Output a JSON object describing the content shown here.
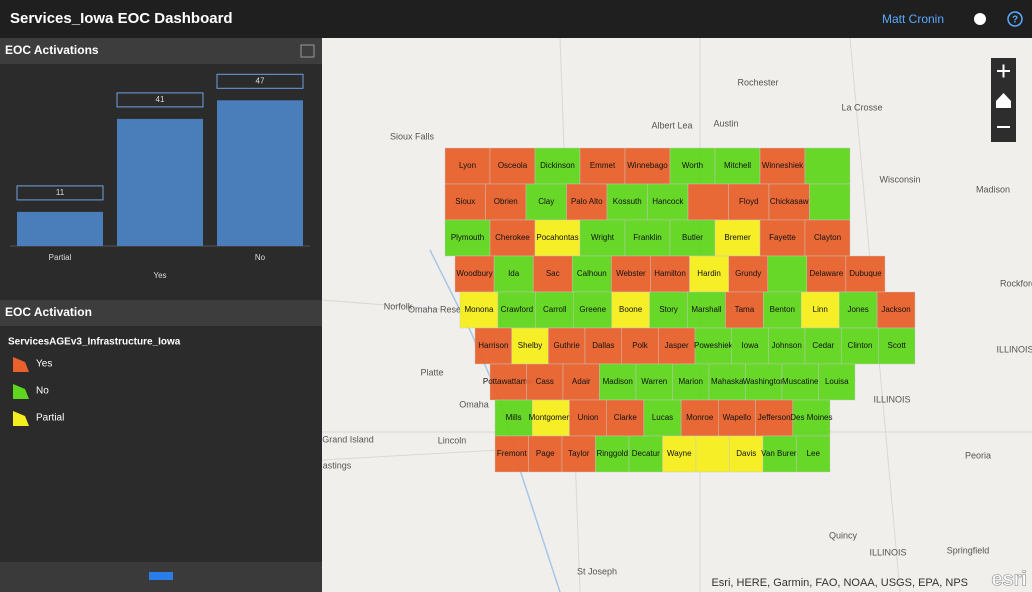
{
  "header": {
    "title": "Services_Iowa EOC Dashboard",
    "user": "Matt Cronin",
    "help": "?"
  },
  "chart_panel": {
    "title": "EOC Activations"
  },
  "chart_data": {
    "type": "bar",
    "categories": [
      "Partial",
      "Yes",
      "No"
    ],
    "values": [
      11,
      41,
      47
    ],
    "color": "#4a7ebb",
    "ylim": [
      0,
      50
    ]
  },
  "legend_panel": {
    "title": "EOC Activation",
    "layer": "ServicesAGEv3_Infrastructure_Iowa",
    "items": [
      {
        "label": "Yes",
        "color": "#e8612c"
      },
      {
        "label": "No",
        "color": "#5fd61e"
      },
      {
        "label": "Partial",
        "color": "#f5ee1e"
      }
    ]
  },
  "map": {
    "places": [
      "Rochester",
      "La Crosse",
      "Albert Lea",
      "Austin",
      "Sioux Falls",
      "Madison",
      "Wisconsin",
      "Norfolk",
      "Omaha Reservation",
      "Rockford",
      "ILLINOIS",
      "ILLINOIS",
      "Omaha",
      "Grand Island",
      "Lincoln",
      "astings",
      "Peoria",
      "Quincy",
      "ILLINOIS",
      "Springfield",
      "St Joseph",
      "Platte"
    ],
    "counties": [
      [
        {
          "name": "Lyon",
          "status": "Yes"
        },
        {
          "name": "Osceola",
          "status": "Yes"
        },
        {
          "name": "Dickinson",
          "status": "No"
        },
        {
          "name": "Emmet",
          "status": "Yes"
        },
        {
          "name": "Winnebago",
          "status": "Yes"
        },
        {
          "name": "Worth",
          "status": "No"
        },
        {
          "name": "Mitchell",
          "status": "No"
        },
        {
          "name": "Winneshiek",
          "status": "Yes"
        },
        {
          "name": null,
          "status": "No"
        }
      ],
      [
        {
          "name": "Sioux",
          "status": "Yes"
        },
        {
          "name": "Obrien",
          "status": "Yes"
        },
        {
          "name": "Clay",
          "status": "No"
        },
        {
          "name": "Palo Alto",
          "status": "Yes"
        },
        {
          "name": "Kossuth",
          "status": "No"
        },
        {
          "name": "Hancock",
          "status": "No"
        },
        {
          "name": null,
          "status": "Yes"
        },
        {
          "name": "Floyd",
          "status": "Yes"
        },
        {
          "name": "Chickasaw",
          "status": "Yes"
        },
        {
          "name": null,
          "status": "No"
        }
      ],
      [
        {
          "name": "Plymouth",
          "status": "No"
        },
        {
          "name": "Cherokee",
          "status": "Yes"
        },
        {
          "name": "Pocahontas",
          "status": "Partial"
        },
        {
          "name": "Wright",
          "status": "No"
        },
        {
          "name": "Franklin",
          "status": "No"
        },
        {
          "name": "Butler",
          "status": "No"
        },
        {
          "name": "Bremer",
          "status": "Partial"
        },
        {
          "name": "Fayette",
          "status": "Yes"
        },
        {
          "name": "Clayton",
          "status": "Yes"
        }
      ],
      [
        {
          "name": "Woodbury",
          "status": "Yes"
        },
        {
          "name": "Ida",
          "status": "No"
        },
        {
          "name": "Sac",
          "status": "Yes"
        },
        {
          "name": "Calhoun",
          "status": "No"
        },
        {
          "name": "Webster",
          "status": "Yes"
        },
        {
          "name": "Hamilton",
          "status": "Yes"
        },
        {
          "name": "Hardin",
          "status": "Partial"
        },
        {
          "name": "Grundy",
          "status": "Yes"
        },
        {
          "name": null,
          "status": "No"
        },
        {
          "name": "Delaware",
          "status": "Yes"
        },
        {
          "name": "Dubuque",
          "status": "Yes"
        }
      ],
      [
        {
          "name": "Monona",
          "status": "Partial"
        },
        {
          "name": "Crawford",
          "status": "No"
        },
        {
          "name": "Carroll",
          "status": "No"
        },
        {
          "name": "Greene",
          "status": "No"
        },
        {
          "name": "Boone",
          "status": "Partial"
        },
        {
          "name": "Story",
          "status": "No"
        },
        {
          "name": "Marshall",
          "status": "No"
        },
        {
          "name": "Tama",
          "status": "Yes"
        },
        {
          "name": "Benton",
          "status": "No"
        },
        {
          "name": "Linn",
          "status": "Partial"
        },
        {
          "name": "Jones",
          "status": "No"
        },
        {
          "name": "Jackson",
          "status": "Yes"
        }
      ],
      [
        {
          "name": "Harrison",
          "status": "Yes"
        },
        {
          "name": "Shelby",
          "status": "Partial"
        },
        {
          "name": "Guthrie",
          "status": "Yes"
        },
        {
          "name": "Dallas",
          "status": "Yes"
        },
        {
          "name": "Polk",
          "status": "Yes"
        },
        {
          "name": "Jasper",
          "status": "Yes"
        },
        {
          "name": "Poweshiek",
          "status": "No"
        },
        {
          "name": "Iowa",
          "status": "No"
        },
        {
          "name": "Johnson",
          "status": "No"
        },
        {
          "name": "Cedar",
          "status": "No"
        },
        {
          "name": "Clinton",
          "status": "No"
        },
        {
          "name": "Scott",
          "status": "No"
        }
      ],
      [
        {
          "name": "Pottawattamie",
          "status": "Yes"
        },
        {
          "name": "Cass",
          "status": "Yes"
        },
        {
          "name": "Adair",
          "status": "Yes"
        },
        {
          "name": "Madison",
          "status": "No"
        },
        {
          "name": "Warren",
          "status": "No"
        },
        {
          "name": "Marion",
          "status": "No"
        },
        {
          "name": "Mahaska",
          "status": "No"
        },
        {
          "name": "Washington",
          "status": "No"
        },
        {
          "name": "Muscatine",
          "status": "No"
        },
        {
          "name": "Louisa",
          "status": "No"
        }
      ],
      [
        {
          "name": "Mills",
          "status": "No"
        },
        {
          "name": "Montgomery",
          "status": "Partial"
        },
        {
          "name": "Union",
          "status": "Yes"
        },
        {
          "name": "Clarke",
          "status": "Yes"
        },
        {
          "name": "Lucas",
          "status": "No"
        },
        {
          "name": "Monroe",
          "status": "Yes"
        },
        {
          "name": "Wapello",
          "status": "Yes"
        },
        {
          "name": "Jefferson",
          "status": "Yes"
        },
        {
          "name": "Des Moines",
          "status": "No"
        }
      ],
      [
        {
          "name": "Fremont",
          "status": "Yes"
        },
        {
          "name": "Page",
          "status": "Yes"
        },
        {
          "name": "Taylor",
          "status": "Yes"
        },
        {
          "name": "Ringgold",
          "status": "No"
        },
        {
          "name": "Decatur",
          "status": "No"
        },
        {
          "name": "Wayne",
          "status": "Partial"
        },
        {
          "name": null,
          "status": "Partial"
        },
        {
          "name": "Davis",
          "status": "Partial"
        },
        {
          "name": "Van Buren",
          "status": "No"
        },
        {
          "name": "Lee",
          "status": "No"
        }
      ]
    ],
    "attribution": "Esri, HERE, Garmin, FAO, NOAA, USGS, EPA, NPS",
    "logo": "esri"
  }
}
